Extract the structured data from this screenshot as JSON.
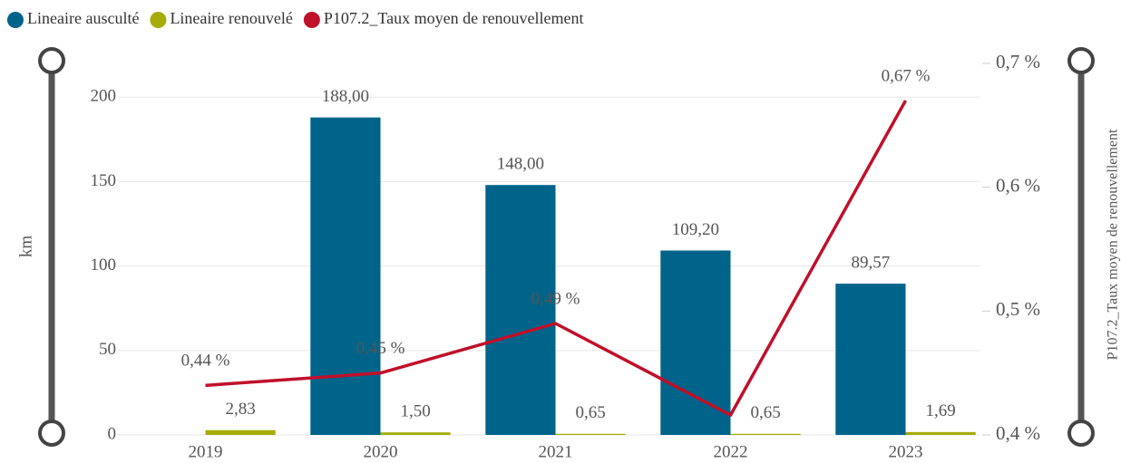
{
  "chart_data": {
    "type": "bar_line",
    "categories": [
      "2019",
      "2020",
      "2021",
      "2022",
      "2023"
    ],
    "series": [
      {
        "name": "Lineaire ausculté",
        "color": "#00648a",
        "type": "bar",
        "values": [
          null,
          188,
          148,
          109.2,
          89.57
        ],
        "value_labels": [
          null,
          "188,00",
          "148,00",
          "109,20",
          "89,57"
        ]
      },
      {
        "name": "Lineaire renouvelé",
        "color": "#a5ac0a",
        "type": "bar",
        "values": [
          2.83,
          1.5,
          0.65,
          0.65,
          1.69
        ],
        "value_labels": [
          "2,83",
          "1,50",
          "0,65",
          "0,65",
          "1,69"
        ]
      },
      {
        "name": "P107.2_Taux moyen de renouvellement",
        "color": "#c0102a",
        "type": "line",
        "axis": "y2",
        "values": [
          0.44,
          0.45,
          0.49,
          0.416,
          0.67
        ],
        "value_labels": [
          "0,44 %",
          "0,45 %",
          "0,49 %",
          null,
          "0,67 %"
        ]
      }
    ],
    "ylabel": "km",
    "y2label": "P107.2_Taux moyen de renouvellement",
    "ylim": [
      0,
      220
    ],
    "yticks": [
      0,
      50,
      100,
      150,
      200
    ],
    "y2lim": [
      0.4,
      0.7
    ],
    "y2ticks": [
      {
        "value": 0.4,
        "label": "0,4 %"
      },
      {
        "value": 0.5,
        "label": "0,5 %"
      },
      {
        "value": 0.6,
        "label": "0,6 %"
      },
      {
        "value": 0.7,
        "label": "0,7 %"
      }
    ],
    "grid": true,
    "legend": "top-left"
  }
}
